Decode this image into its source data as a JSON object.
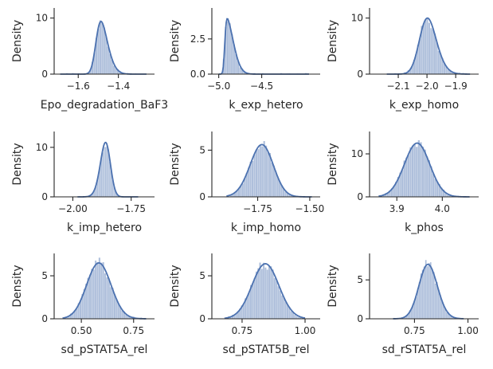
{
  "chart_data": [
    {
      "type": "histogram",
      "xlabel": "Epo_degradation_BaF3",
      "ylabel": "Density",
      "xlim": [
        -1.72,
        -1.22
      ],
      "ylim": [
        0,
        11.8
      ],
      "xticks": [
        {
          "v": -1.6,
          "label": "−1.6"
        },
        {
          "v": -1.4,
          "label": "−1.4"
        }
      ],
      "yticks": [
        {
          "v": 0,
          "label": "0"
        },
        {
          "v": 10,
          "label": "10"
        }
      ],
      "dist": {
        "mean": -1.51,
        "sd": 0.045,
        "skew": 2.2,
        "peak": 9.4,
        "lo": -1.69,
        "hi": -1.26
      }
    },
    {
      "type": "histogram",
      "xlabel": "k_exp_hetero",
      "ylabel": "Density",
      "xlim": [
        -5.08,
        -3.82
      ],
      "ylim": [
        0,
        4.7
      ],
      "xticks": [
        {
          "v": -5.0,
          "label": "−5.0"
        },
        {
          "v": -4.5,
          "label": "−4.5"
        }
      ],
      "yticks": [
        {
          "v": 0,
          "label": "0.0"
        },
        {
          "v": 2.5,
          "label": "2.5"
        }
      ],
      "dist": {
        "mean": -4.93,
        "sd": 0.09,
        "skew": 6.0,
        "peak": 3.95,
        "lo": -5.0,
        "hi": -3.95
      }
    },
    {
      "type": "histogram",
      "xlabel": "k_exp_homo",
      "ylabel": "Density",
      "xlim": [
        -2.2,
        -1.82
      ],
      "ylim": [
        0,
        11.8
      ],
      "xticks": [
        {
          "v": -2.1,
          "label": "−2.1"
        },
        {
          "v": -2.0,
          "label": "−2.0"
        },
        {
          "v": -1.9,
          "label": "−1.9"
        }
      ],
      "yticks": [
        {
          "v": 0,
          "label": "0"
        },
        {
          "v": 10,
          "label": "10"
        }
      ],
      "dist": {
        "mean": -2.02,
        "sd": 0.04,
        "skew": 1.4,
        "peak": 10.0,
        "lo": -2.14,
        "hi": -1.85
      }
    },
    {
      "type": "histogram",
      "xlabel": "k_imp_hetero",
      "ylabel": "Density",
      "xlim": [
        -2.08,
        -1.65
      ],
      "ylim": [
        0,
        13.2
      ],
      "xticks": [
        {
          "v": -2.0,
          "label": "−2.00"
        },
        {
          "v": -1.75,
          "label": "−1.75"
        }
      ],
      "yticks": [
        {
          "v": 0,
          "label": "0"
        },
        {
          "v": 10,
          "label": "10"
        }
      ],
      "dist": {
        "mean": -1.845,
        "sd": 0.028,
        "skew": -1.2,
        "peak": 11.0,
        "lo": -1.98,
        "hi": -1.72
      }
    },
    {
      "type": "histogram",
      "xlabel": "k_imp_homo",
      "ylabel": "Density",
      "xlim": [
        -1.97,
        -1.45
      ],
      "ylim": [
        0,
        7.0
      ],
      "xticks": [
        {
          "v": -1.75,
          "label": "−1.75"
        },
        {
          "v": -1.5,
          "label": "−1.50"
        }
      ],
      "yticks": [
        {
          "v": 0,
          "label": "0"
        },
        {
          "v": 5,
          "label": "5"
        }
      ],
      "dist": {
        "mean": -1.7,
        "sd": 0.065,
        "skew": -0.8,
        "peak": 5.6,
        "lo": -1.9,
        "hi": -1.49
      }
    },
    {
      "type": "histogram",
      "xlabel": "k_phos",
      "ylabel": "Density",
      "xlim": [
        3.84,
        4.08
      ],
      "ylim": [
        0,
        15.2
      ],
      "xticks": [
        {
          "v": 3.9,
          "label": "3.9"
        },
        {
          "v": 4.0,
          "label": "4.0"
        }
      ],
      "yticks": [
        {
          "v": 0,
          "label": "0"
        },
        {
          "v": 10,
          "label": "10"
        }
      ],
      "dist": {
        "mean": 3.955,
        "sd": 0.03,
        "skew": -0.5,
        "peak": 12.5,
        "lo": 3.86,
        "hi": 4.06
      }
    },
    {
      "type": "histogram",
      "xlabel": "sd_pSTAT5A_rel",
      "ylabel": "Density",
      "xlim": [
        0.37,
        0.85
      ],
      "ylim": [
        0,
        7.6
      ],
      "xticks": [
        {
          "v": 0.5,
          "label": "0.50"
        },
        {
          "v": 0.75,
          "label": "0.75"
        }
      ],
      "yticks": [
        {
          "v": 0,
          "label": "0"
        },
        {
          "v": 5,
          "label": "5"
        }
      ],
      "dist": {
        "mean": 0.57,
        "sd": 0.06,
        "skew": 0.3,
        "peak": 6.5,
        "lo": 0.41,
        "hi": 0.81
      }
    },
    {
      "type": "histogram",
      "xlabel": "sd_pSTAT5B_rel",
      "ylabel": "Density",
      "xlim": [
        0.63,
        1.06
      ],
      "ylim": [
        0,
        7.6
      ],
      "xticks": [
        {
          "v": 0.75,
          "label": "0.75"
        },
        {
          "v": 1.0,
          "label": "1.00"
        }
      ],
      "yticks": [
        {
          "v": 0,
          "label": "0"
        },
        {
          "v": 5,
          "label": "5"
        }
      ],
      "dist": {
        "mean": 0.83,
        "sd": 0.055,
        "skew": 0.3,
        "peak": 6.4,
        "lo": 0.68,
        "hi": 1.0
      }
    },
    {
      "type": "histogram",
      "xlabel": "sd_rSTAT5A_rel",
      "ylabel": "Density",
      "xlim": [
        0.54,
        1.05
      ],
      "ylim": [
        0,
        8.4
      ],
      "xticks": [
        {
          "v": 0.75,
          "label": "0.75"
        },
        {
          "v": 1.0,
          "label": "1.00"
        }
      ],
      "yticks": [
        {
          "v": 0,
          "label": "0"
        },
        {
          "v": 5,
          "label": "5"
        }
      ],
      "dist": {
        "mean": 0.79,
        "sd": 0.05,
        "skew": 0.8,
        "peak": 7.0,
        "lo": 0.65,
        "hi": 0.98
      }
    }
  ],
  "colors": {
    "bar": "#4C72B0",
    "kde": "#4C72B0",
    "axis": "#262626"
  }
}
